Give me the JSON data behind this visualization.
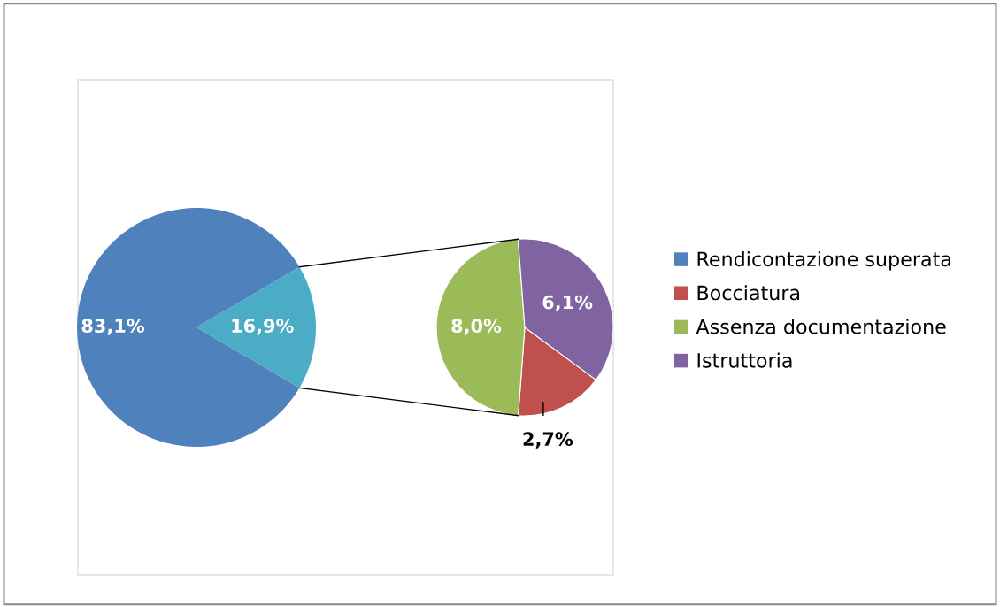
{
  "chart_data": [
    {
      "type": "pie",
      "categories": [
        "Rendicontazione superata",
        null
      ],
      "values": [
        83.1,
        16.9
      ],
      "colors": [
        "#4f81bd",
        "#4bacc6"
      ],
      "value_labels": [
        "83,1%",
        "16,9%"
      ],
      "legend": "right"
    },
    {
      "type": "pie",
      "categories": [
        "Bocciatura",
        "Assenza documentazione",
        "Istruttoria"
      ],
      "values": [
        2.7,
        8.0,
        6.1
      ],
      "colors": [
        "#c0504d",
        "#9bbb59",
        "#8064a2"
      ],
      "value_labels": [
        "2,7%",
        "8,0%",
        "6,1%"
      ],
      "legend": "right"
    }
  ]
}
